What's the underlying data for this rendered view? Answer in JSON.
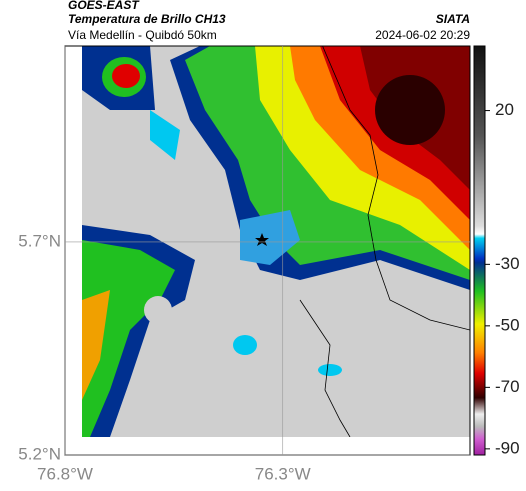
{
  "header": {
    "source": "GOES-EAST",
    "title": "Temperatura de Brillo CH13",
    "subtitle": "Vía Medellín - Quibdó 50km",
    "org": "SIATA",
    "datetime": "2024-06-02 20:29"
  },
  "map": {
    "lat_lim": [
      5.2,
      6.16
    ],
    "lon_lim": [
      -76.8,
      -75.87
    ],
    "lat_ticks": [
      {
        "value": 5.7,
        "label": "5.7°N"
      },
      {
        "value": 5.2,
        "label": "5.2°N"
      }
    ],
    "lon_ticks": [
      {
        "value": -76.8,
        "label": "76.8°W"
      },
      {
        "value": -76.3,
        "label": "76.3°W"
      }
    ],
    "colorbar": {
      "lim": [
        -92,
        41
      ],
      "ticks": [
        20,
        -30,
        -50,
        -70,
        -90
      ]
    }
  }
}
